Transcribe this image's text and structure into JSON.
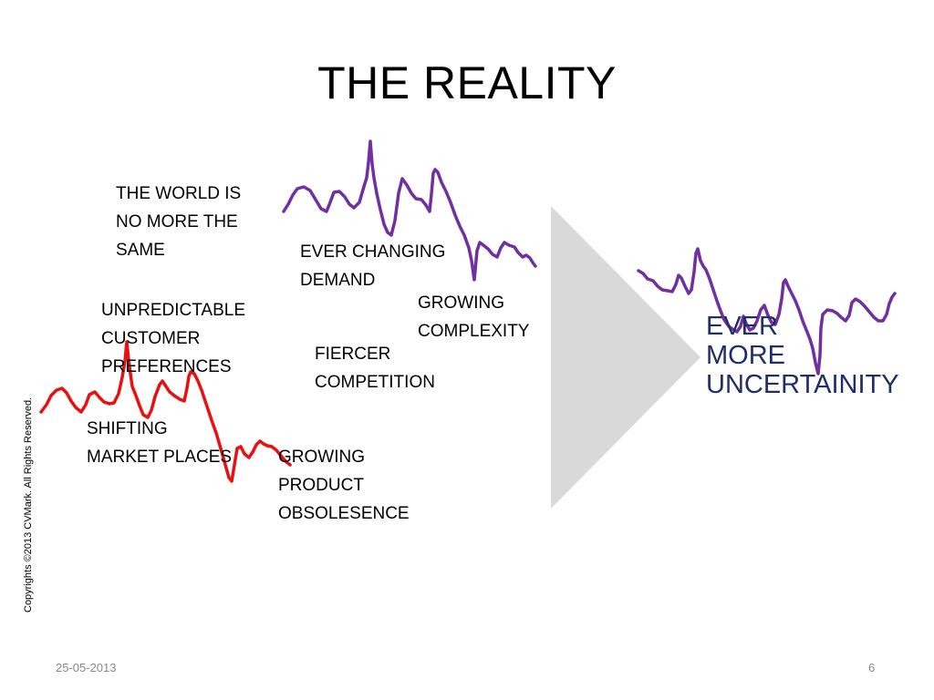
{
  "title": "THE REALITY",
  "labels": {
    "world": [
      "THE WORLD IS",
      "NO MORE  THE",
      "SAME"
    ],
    "demand": [
      "EVER CHANGING",
      "DEMAND"
    ],
    "complexity": [
      "GROWING",
      "COMPLEXITY"
    ],
    "customer": [
      "UNPREDICTABLE",
      "CUSTOMER",
      "PREFERENCES"
    ],
    "competition": [
      "FIERCER",
      "COMPETITION"
    ],
    "market": [
      "SHIFTING",
      "MARKET PLACES"
    ],
    "obsolesence": [
      "GROWING",
      "PRODUCT",
      "OBSOLESENCE"
    ]
  },
  "result": [
    "EVER",
    "MORE",
    "UNCERTAINITY"
  ],
  "copyright": "Copyrights  ©2013 CVMark. All Rights Reserved.",
  "footer": {
    "date": "25-05-2013",
    "page": "6"
  },
  "colors": {
    "purple_line": "#7030a0",
    "red_line": "#e81010",
    "arrow": "#d9d9d9",
    "result_text": "#1f2d6b"
  }
}
